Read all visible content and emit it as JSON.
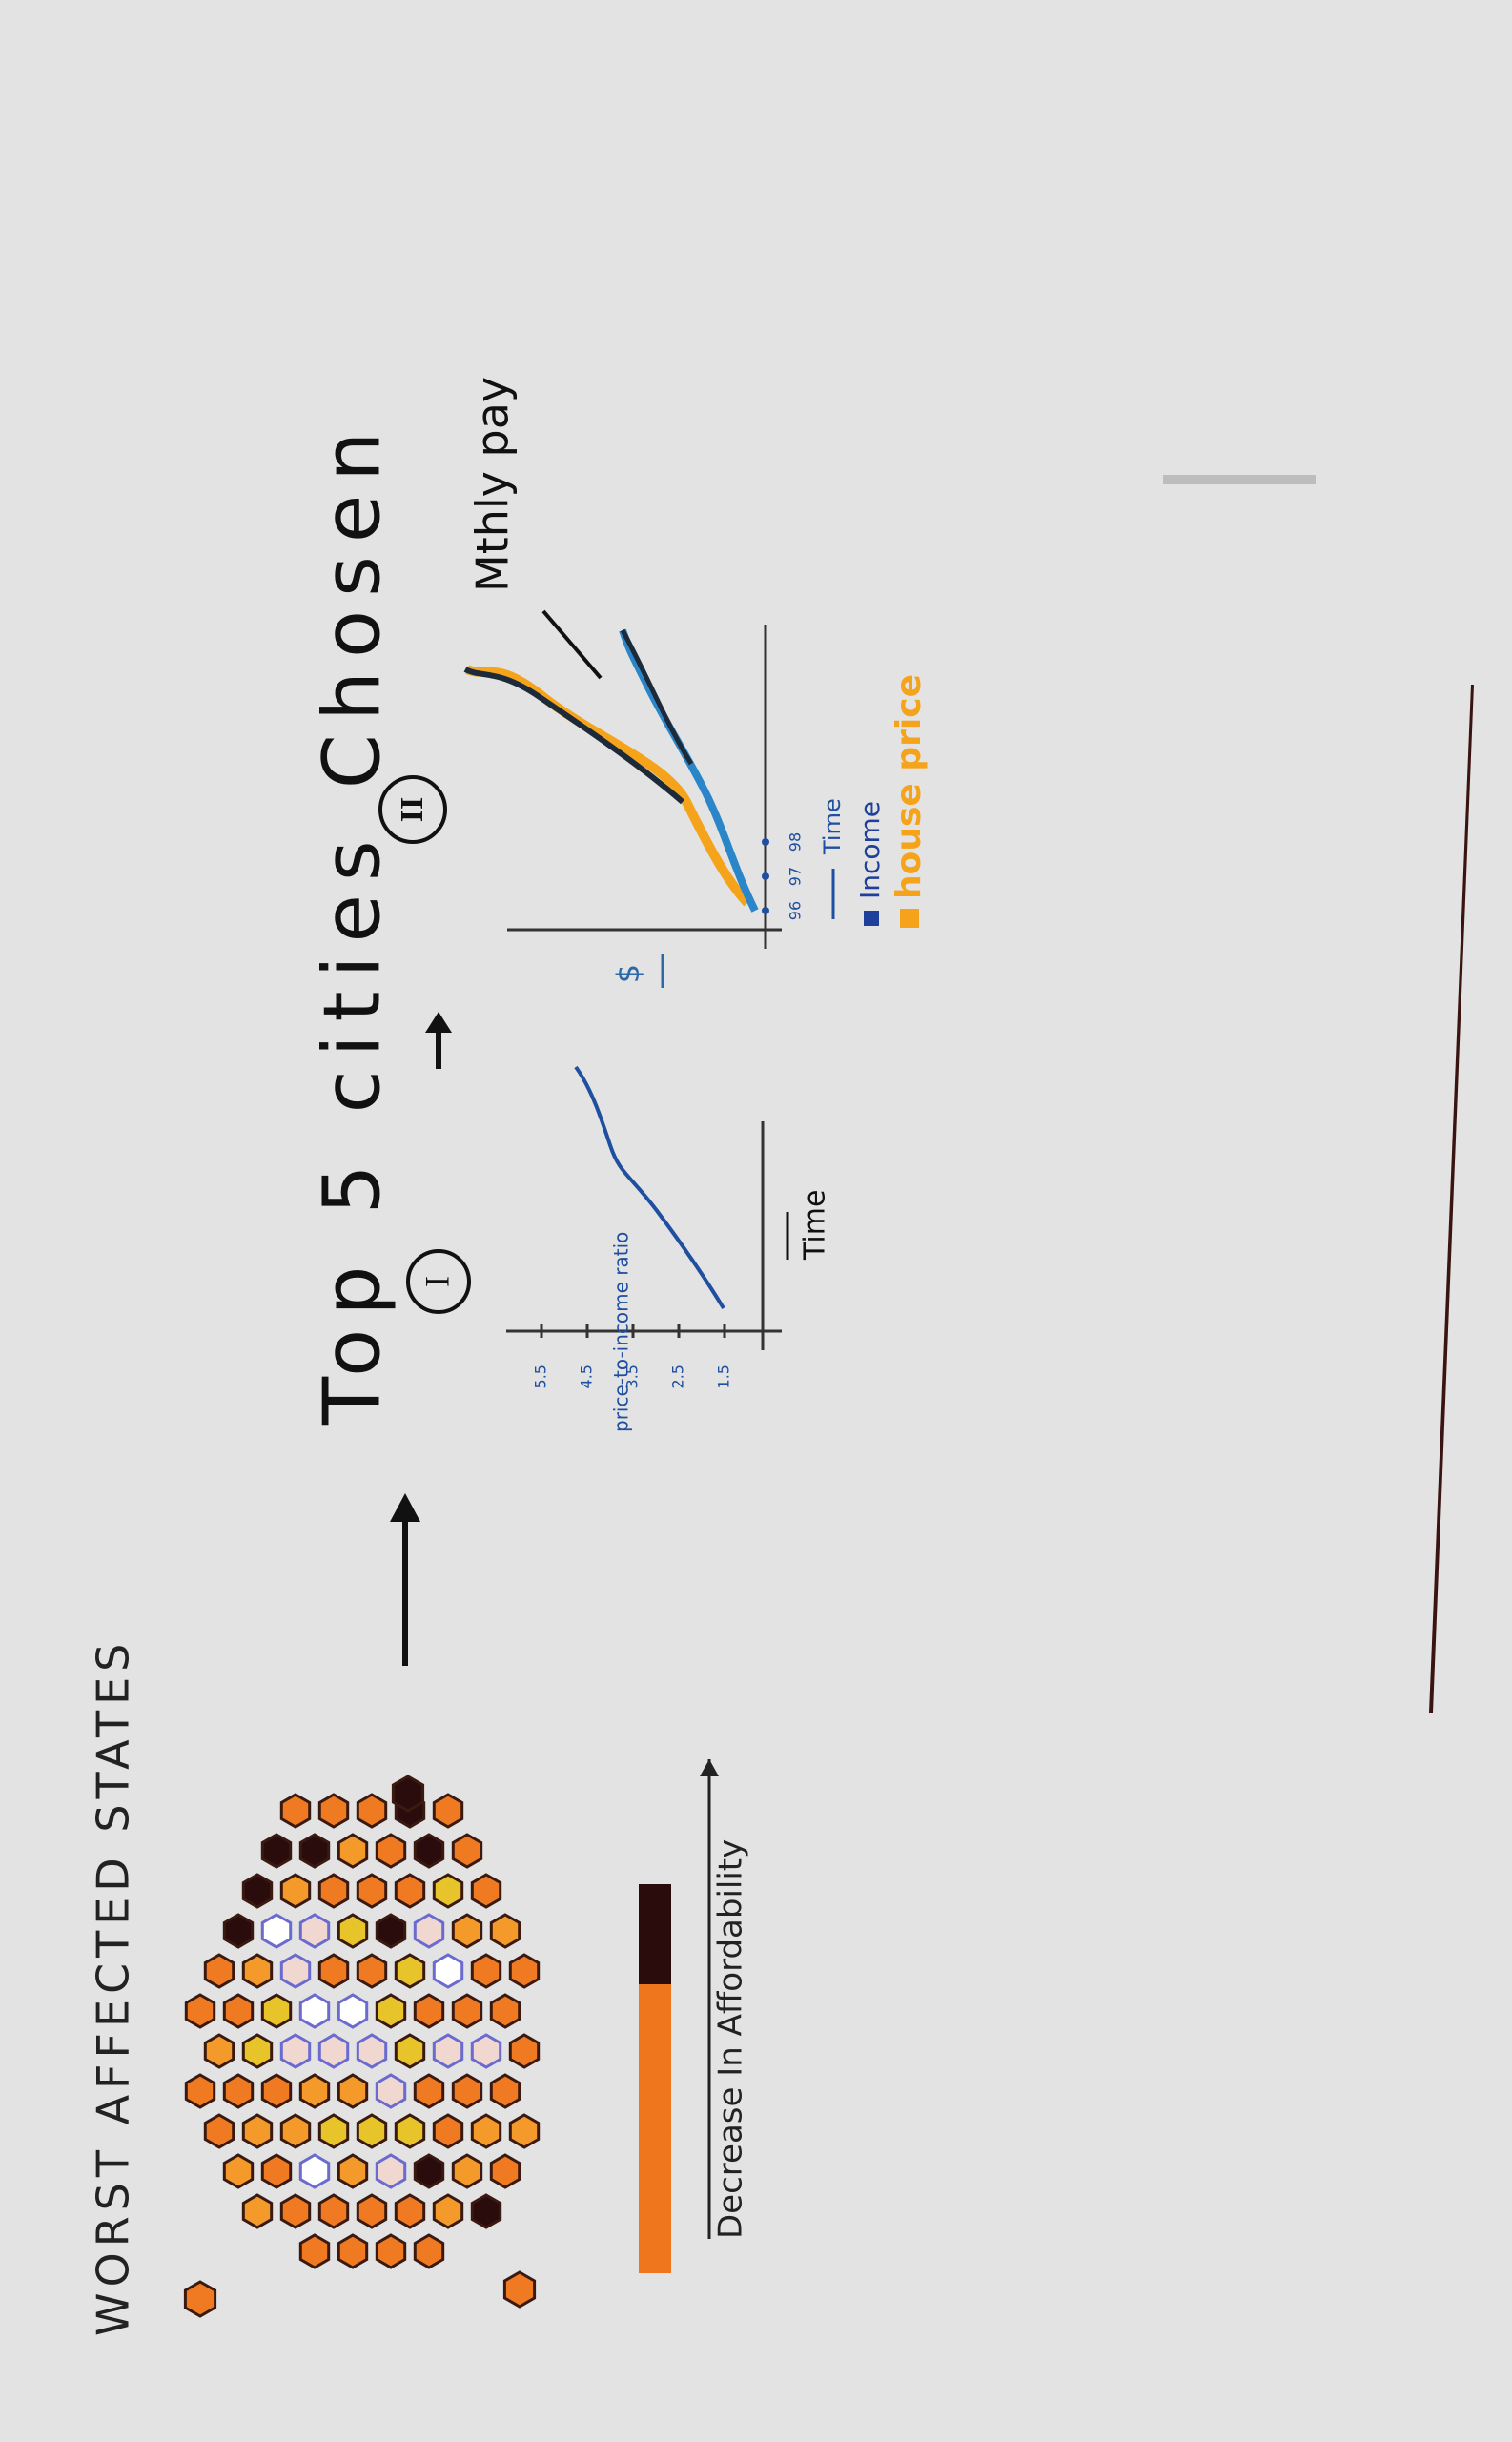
{
  "left": {
    "title": "WORST AFFECTED STATES",
    "legend_label": "Decrease In Affordability"
  },
  "center": {
    "title": "Top 5 cities Chosen"
  },
  "chart_1": {
    "label": "I",
    "y_label": "price-to-income ratio",
    "y_ticks": [
      "5.5",
      "4.5",
      "3.5",
      "2.5",
      "1.5"
    ],
    "x_label": "Time"
  },
  "chart_2": {
    "label": "II",
    "y_label": "$",
    "x_ticks": [
      "96",
      "97",
      "98"
    ],
    "legend": [
      "Time",
      "Income",
      "house price"
    ],
    "annotation": "Mthly pay"
  }
}
